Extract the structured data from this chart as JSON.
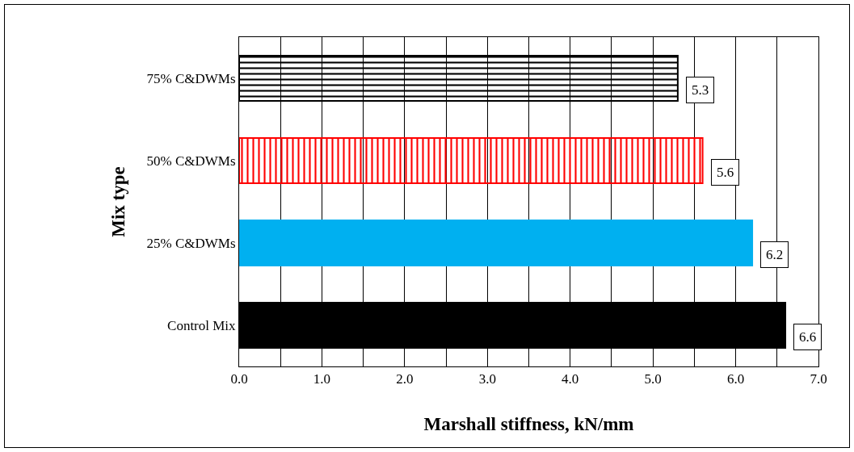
{
  "chart_data": {
    "type": "bar",
    "orientation": "horizontal",
    "xlabel": "Marshall stiffness, kN/mm",
    "ylabel": "Mix type",
    "categories": [
      "75% C&DWMs",
      "50% C&DWMs",
      "25% C&DWMs",
      "Control Mix"
    ],
    "values": [
      5.3,
      5.6,
      6.2,
      6.6
    ],
    "colors": [
      "#000000",
      "#ff0000",
      "#00b0f0",
      "#000000"
    ],
    "xlim": [
      0,
      7
    ],
    "xticks": [
      {
        "value": 0,
        "label": "0.0"
      },
      {
        "value": 1,
        "label": "1.0"
      },
      {
        "value": 2,
        "label": "2.0"
      },
      {
        "value": 3,
        "label": "3.0"
      },
      {
        "value": 4,
        "label": "4.0"
      },
      {
        "value": 5,
        "label": "5.0"
      },
      {
        "value": 6,
        "label": "6.0"
      },
      {
        "value": 7,
        "label": "7.0"
      }
    ],
    "grid": "x",
    "data_labels": true
  }
}
